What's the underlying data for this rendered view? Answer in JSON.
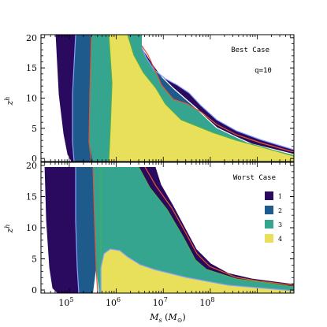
{
  "colors": {
    "region_1": "#2a0a5e",
    "region_2": "#1e5a8c",
    "region_3": "#36a58f",
    "region_4": "#e8e05a",
    "contour_white": "#ffffff",
    "contour_blue": "#8aa0ff",
    "contour_red": "#e8552e",
    "contour_green": "#4caf50"
  },
  "chart_data": [
    {
      "type": "area",
      "panel": "top",
      "annotations": [
        "Best Case",
        "q=10"
      ],
      "ylabel": "z^h",
      "xscale": "log",
      "xlim": [
        25000,
        6000000000
      ],
      "ylim": [
        -0.5,
        20.5
      ],
      "yticks": [
        "0",
        "5",
        "10",
        "15",
        "20"
      ],
      "series": [
        {
          "level": 1,
          "left_boundary": [
            [
              70000,
              20
            ],
            [
              73000,
              15
            ],
            [
              77000,
              10
            ],
            [
              82000,
              5
            ],
            [
              90000,
              1.5
            ],
            [
              100000,
              0
            ]
          ],
          "right_boundary": [
            [
              105000,
              0
            ],
            [
              115000,
              1
            ],
            [
              120000,
              5
            ],
            [
              118000,
              10
            ],
            [
              115000,
              15
            ],
            [
              112000,
              20
            ]
          ]
        },
        {
          "level": 2,
          "left_boundary": [
            [
              115000,
              20
            ],
            [
              120000,
              10
            ],
            [
              130000,
              3
            ],
            [
              140000,
              0
            ]
          ],
          "right_boundary": [
            [
              190000,
              0
            ],
            [
              225000,
              0.8
            ],
            [
              235000,
              5
            ],
            [
              230000,
              15
            ],
            [
              225000,
              20
            ]
          ]
        },
        {
          "level": 3,
          "left_boundary": [
            [
              230000,
              20
            ],
            [
              240000,
              10
            ],
            [
              260000,
              3
            ],
            [
              280000,
              0
            ]
          ],
          "right_boundary": [
            [
              380000,
              0
            ],
            [
              400000,
              2
            ],
            [
              420000,
              8
            ],
            [
              440000,
              14
            ],
            [
              460000,
              20
            ]
          ]
        },
        {
          "level": 4,
          "left_boundary": [
            [
              460000,
              20
            ],
            [
              430000,
              10
            ],
            [
              420000,
              3
            ],
            [
              430000,
              0
            ]
          ],
          "right_boundary": [
            [
              5000000000,
              0
            ],
            [
              800000000,
              1
            ],
            [
              100000000,
              2.5
            ],
            [
              30000000,
              3.5
            ],
            [
              8000000,
              6
            ],
            [
              3000000,
              12
            ],
            [
              1500000,
              17
            ],
            [
              1000000,
              20
            ]
          ]
        }
      ]
    },
    {
      "type": "area",
      "panel": "bottom",
      "annotations": [
        "Worst Case"
      ],
      "ylabel": "z^h",
      "xlabel": "M_s (M_⊙)",
      "xscale": "log",
      "xlim": [
        25000,
        6000000000
      ],
      "ylim": [
        -0.5,
        20.5
      ],
      "xticks": [
        "10^5",
        "10^6",
        "10^7",
        "10^8"
      ],
      "yticks": [
        "0",
        "5",
        "10",
        "15",
        "20"
      ],
      "legend": {
        "position": "right",
        "entries": [
          "1",
          "2",
          "3",
          "4"
        ]
      },
      "series": [
        {
          "level": 1,
          "left_boundary": [
            [
              35000,
              20
            ],
            [
              38000,
              10
            ],
            [
              42000,
              3
            ],
            [
              50000,
              0
            ]
          ],
          "right_boundary": [
            [
              70000,
              0
            ],
            [
              85000,
              2
            ],
            [
              88000,
              8
            ],
            [
              90000,
              15
            ],
            [
              95000,
              20
            ]
          ]
        },
        {
          "level": 2,
          "left_boundary": [
            [
              95000,
              20
            ],
            [
              95000,
              10
            ],
            [
              100000,
              2
            ],
            [
              110000,
              0
            ]
          ],
          "right_boundary": [
            [
              140000,
              0
            ],
            [
              170000,
              2
            ],
            [
              185000,
              8
            ],
            [
              190000,
              15
            ],
            [
              195000,
              20
            ]
          ]
        },
        {
          "level": 3,
          "left_boundary": [
            [
              195000,
              20
            ],
            [
              200000,
              10
            ],
            [
              220000,
              2
            ],
            [
              250000,
              0
            ]
          ],
          "right_boundary": [
            [
              5000000000,
              0
            ],
            [
              400000000,
              0.8
            ],
            [
              50000000,
              1.5
            ],
            [
              10000000,
              2.3
            ],
            [
              5000000,
              5
            ],
            [
              3000000,
              10
            ],
            [
              2000000,
              15
            ],
            [
              1800000,
              20
            ]
          ]
        },
        {
          "level": 4,
          "left_boundary": [
            [
              420000,
              0
            ],
            [
              430000,
              4
            ],
            [
              470000,
              6.5
            ],
            [
              520000,
              7
            ],
            [
              620000,
              6
            ]
          ],
          "right_boundary": [
            [
              1200000,
              3
            ],
            [
              8000000,
              2
            ],
            [
              50000000,
              1.3
            ],
            [
              400000000,
              0.6
            ],
            [
              5000000000,
              0
            ]
          ]
        }
      ]
    }
  ]
}
